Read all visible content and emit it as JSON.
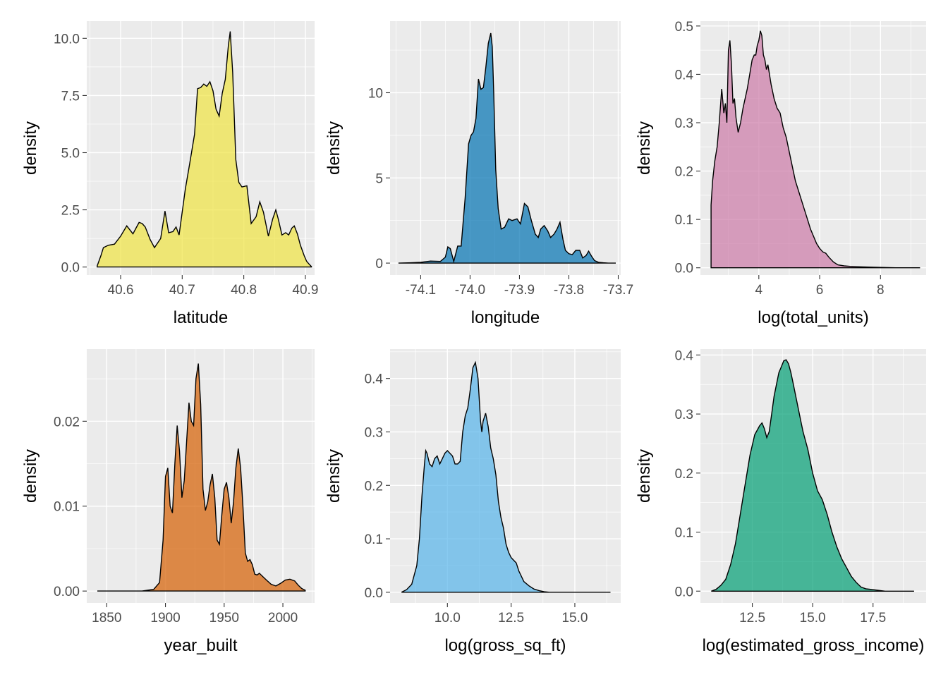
{
  "chart_data": [
    {
      "type": "area",
      "xlabel": "latitude",
      "ylabel": "density",
      "color": "#F0E442",
      "xlim": [
        40.545,
        40.915
      ],
      "ylim": [
        -0.35,
        10.75
      ],
      "xticks": [
        40.6,
        40.7,
        40.8,
        40.9
      ],
      "xtick_labels": [
        "40.6",
        "40.7",
        "40.8",
        "40.9"
      ],
      "yticks": [
        0,
        2.5,
        5,
        7.5,
        10
      ],
      "ytick_labels": [
        "0.0",
        "2.5",
        "5.0",
        "7.5",
        "10.0"
      ],
      "x": [
        40.562,
        40.568,
        40.572,
        40.58,
        40.59,
        40.6,
        40.61,
        40.62,
        40.625,
        40.63,
        40.635,
        40.64,
        40.648,
        40.655,
        40.665,
        40.672,
        40.678,
        40.685,
        40.69,
        40.695,
        40.705,
        40.712,
        40.72,
        40.725,
        40.73,
        40.735,
        40.74,
        40.745,
        40.75,
        40.755,
        40.76,
        40.765,
        40.77,
        40.775,
        40.778,
        40.782,
        40.787,
        40.792,
        40.797,
        40.805,
        40.812,
        40.82,
        40.826,
        40.832,
        40.84,
        40.847,
        40.852,
        40.856,
        40.862,
        40.868,
        40.873,
        40.878,
        40.882,
        40.887,
        40.892,
        40.898,
        40.902,
        40.907,
        40.91
      ],
      "y": [
        0.05,
        0.5,
        0.85,
        0.95,
        1.0,
        1.35,
        1.8,
        1.45,
        1.7,
        1.95,
        1.9,
        1.75,
        1.2,
        0.85,
        1.25,
        2.45,
        1.5,
        1.55,
        1.75,
        1.4,
        3.4,
        4.5,
        5.8,
        7.8,
        7.85,
        8.0,
        7.9,
        8.1,
        7.7,
        6.9,
        6.6,
        7.6,
        8.2,
        9.7,
        10.3,
        8.5,
        4.7,
        3.7,
        3.5,
        3.55,
        1.9,
        2.2,
        2.85,
        2.4,
        1.35,
        2.1,
        2.5,
        2.1,
        1.4,
        1.5,
        1.4,
        1.7,
        1.8,
        1.45,
        0.95,
        0.5,
        0.25,
        0.1,
        0.02
      ]
    },
    {
      "type": "area",
      "xlabel": "longitude",
      "ylabel": "density",
      "color": "#0072B2",
      "xlim": [
        -74.162,
        -73.695
      ],
      "ylim": [
        -0.7,
        14.2
      ],
      "xticks": [
        -74.1,
        -74.0,
        -73.9,
        -73.8,
        -73.7
      ],
      "xtick_labels": [
        "-74.1",
        "-74.0",
        "-73.9",
        "-73.8",
        "-73.7"
      ],
      "yticks": [
        0,
        5,
        10
      ],
      "ytick_labels": [
        "0",
        "5",
        "10"
      ],
      "x": [
        -74.145,
        -74.12,
        -74.1,
        -74.08,
        -74.06,
        -74.05,
        -74.045,
        -74.04,
        -74.033,
        -74.025,
        -74.018,
        -74.01,
        -74.003,
        -73.998,
        -73.993,
        -73.988,
        -73.983,
        -73.978,
        -73.973,
        -73.968,
        -73.963,
        -73.958,
        -73.955,
        -73.952,
        -73.948,
        -73.943,
        -73.937,
        -73.93,
        -73.922,
        -73.915,
        -73.905,
        -73.898,
        -73.89,
        -73.883,
        -73.876,
        -73.868,
        -73.862,
        -73.857,
        -73.85,
        -73.843,
        -73.837,
        -73.83,
        -73.824,
        -73.818,
        -73.812,
        -73.807,
        -73.8,
        -73.793,
        -73.786,
        -73.778,
        -73.772,
        -73.765,
        -73.76,
        -73.754,
        -73.748,
        -73.74,
        -73.73,
        -73.72,
        -73.705
      ],
      "y": [
        0.0,
        0.02,
        0.05,
        0.12,
        0.1,
        0.35,
        0.95,
        0.85,
        0.1,
        1.0,
        1.0,
        3.8,
        7.0,
        7.5,
        7.7,
        8.5,
        10.8,
        10.2,
        10.3,
        11.5,
        12.9,
        13.5,
        12.7,
        10.0,
        5.5,
        3.2,
        2.0,
        2.1,
        2.6,
        2.5,
        2.6,
        2.3,
        3.5,
        3.3,
        2.5,
        1.7,
        1.5,
        2.0,
        2.2,
        1.9,
        1.5,
        1.7,
        2.0,
        2.4,
        1.4,
        0.75,
        0.55,
        0.5,
        0.75,
        0.75,
        0.3,
        0.45,
        0.7,
        0.4,
        0.15,
        0.05,
        0.02,
        0.0,
        0.0
      ]
    },
    {
      "type": "area",
      "xlabel": "log(total_units)",
      "ylabel": "density",
      "color": "#CC79A7",
      "xlim": [
        2.08,
        9.5
      ],
      "ylim": [
        -0.015,
        0.51
      ],
      "xticks": [
        4,
        6,
        8
      ],
      "xtick_labels": [
        "4",
        "6",
        "8"
      ],
      "yticks": [
        0,
        0.1,
        0.2,
        0.3,
        0.4,
        0.5
      ],
      "ytick_labels": [
        "0.0",
        "0.1",
        "0.2",
        "0.3",
        "0.4",
        "0.5"
      ],
      "x": [
        2.43,
        2.48,
        2.55,
        2.63,
        2.7,
        2.78,
        2.85,
        2.9,
        2.95,
        3.0,
        3.05,
        3.1,
        3.15,
        3.2,
        3.25,
        3.32,
        3.4,
        3.48,
        3.55,
        3.62,
        3.7,
        3.78,
        3.85,
        3.9,
        3.95,
        4.0,
        4.05,
        4.1,
        4.15,
        4.2,
        4.25,
        4.3,
        4.4,
        4.5,
        4.6,
        4.7,
        4.8,
        4.9,
        5.0,
        5.1,
        5.2,
        5.3,
        5.4,
        5.5,
        5.6,
        5.7,
        5.8,
        5.9,
        6.0,
        6.1,
        6.2,
        6.3,
        6.45,
        6.6,
        6.8,
        7.0,
        7.3,
        7.8,
        8.5,
        9.3
      ],
      "y": [
        0.13,
        0.18,
        0.22,
        0.25,
        0.3,
        0.37,
        0.32,
        0.34,
        0.3,
        0.45,
        0.47,
        0.42,
        0.34,
        0.35,
        0.31,
        0.28,
        0.3,
        0.33,
        0.35,
        0.37,
        0.4,
        0.43,
        0.44,
        0.44,
        0.46,
        0.47,
        0.49,
        0.48,
        0.44,
        0.43,
        0.41,
        0.42,
        0.38,
        0.35,
        0.33,
        0.32,
        0.29,
        0.27,
        0.24,
        0.21,
        0.18,
        0.16,
        0.14,
        0.12,
        0.1,
        0.08,
        0.065,
        0.05,
        0.04,
        0.033,
        0.03,
        0.022,
        0.012,
        0.006,
        0.004,
        0.003,
        0.002,
        0.001,
        0.0,
        0.0
      ]
    },
    {
      "type": "area",
      "xlabel": "year_built",
      "ylabel": "density",
      "color": "#D55E00",
      "xlim": [
        1833,
        2027
      ],
      "ylim": [
        -0.0014,
        0.0285
      ],
      "xticks": [
        1850,
        1900,
        1950,
        2000
      ],
      "xtick_labels": [
        "1850",
        "1900",
        "1950",
        "2000"
      ],
      "yticks": [
        0,
        0.01,
        0.02
      ],
      "ytick_labels": [
        "0.00",
        "0.01",
        "0.02"
      ],
      "x": [
        1842,
        1860,
        1880,
        1890,
        1895,
        1898,
        1900,
        1902,
        1904,
        1906,
        1908,
        1910,
        1912,
        1914,
        1916,
        1918,
        1920,
        1922,
        1924,
        1926,
        1928,
        1930,
        1932,
        1934,
        1936,
        1938,
        1940,
        1942,
        1944,
        1946,
        1948,
        1950,
        1952,
        1954,
        1956,
        1958,
        1960,
        1962,
        1964,
        1966,
        1968,
        1970,
        1972,
        1974,
        1976,
        1978,
        1980,
        1983,
        1986,
        1990,
        1994,
        1998,
        2002,
        2006,
        2010,
        2013,
        2016,
        2019
      ],
      "y": [
        0.0,
        0.0,
        0.0,
        0.0002,
        0.001,
        0.006,
        0.0135,
        0.0145,
        0.01,
        0.0092,
        0.015,
        0.0195,
        0.0165,
        0.011,
        0.013,
        0.0175,
        0.0222,
        0.02,
        0.0195,
        0.025,
        0.0268,
        0.022,
        0.012,
        0.0095,
        0.0105,
        0.0125,
        0.0138,
        0.011,
        0.006,
        0.0055,
        0.009,
        0.012,
        0.0128,
        0.011,
        0.008,
        0.0105,
        0.0145,
        0.0168,
        0.0145,
        0.01,
        0.0045,
        0.0035,
        0.0037,
        0.0031,
        0.002,
        0.0019,
        0.0021,
        0.0017,
        0.0013,
        0.0008,
        0.0006,
        0.0009,
        0.0013,
        0.0014,
        0.0012,
        0.0007,
        0.0003,
        0.0001
      ]
    },
    {
      "type": "area",
      "xlabel": "log(gross_sq_ft)",
      "ylabel": "density",
      "color": "#56B4E9",
      "xlim": [
        7.75,
        16.8
      ],
      "ylim": [
        -0.02,
        0.455
      ],
      "xticks": [
        10,
        12.5,
        15
      ],
      "xtick_labels": [
        "10.0",
        "12.5",
        "15.0"
      ],
      "yticks": [
        0,
        0.1,
        0.2,
        0.3,
        0.4
      ],
      "ytick_labels": [
        "0.0",
        "0.1",
        "0.2",
        "0.3",
        "0.4"
      ],
      "x": [
        8.2,
        8.4,
        8.6,
        8.8,
        8.9,
        9.0,
        9.1,
        9.15,
        9.2,
        9.3,
        9.4,
        9.5,
        9.6,
        9.7,
        9.8,
        9.9,
        10.0,
        10.1,
        10.2,
        10.3,
        10.4,
        10.5,
        10.6,
        10.7,
        10.8,
        10.9,
        11.0,
        11.1,
        11.2,
        11.3,
        11.35,
        11.4,
        11.5,
        11.6,
        11.7,
        11.8,
        11.9,
        12.0,
        12.1,
        12.2,
        12.3,
        12.4,
        12.5,
        12.6,
        12.7,
        12.8,
        12.9,
        13.0,
        13.2,
        13.4,
        13.6,
        13.8,
        14.0,
        14.5,
        15.0,
        15.5,
        16.0,
        16.4
      ],
      "y": [
        0.0,
        0.005,
        0.015,
        0.05,
        0.1,
        0.18,
        0.24,
        0.265,
        0.26,
        0.24,
        0.235,
        0.25,
        0.255,
        0.24,
        0.25,
        0.26,
        0.265,
        0.26,
        0.255,
        0.24,
        0.24,
        0.245,
        0.3,
        0.33,
        0.345,
        0.38,
        0.42,
        0.43,
        0.4,
        0.32,
        0.3,
        0.32,
        0.335,
        0.31,
        0.27,
        0.25,
        0.22,
        0.17,
        0.14,
        0.12,
        0.09,
        0.075,
        0.065,
        0.06,
        0.055,
        0.04,
        0.03,
        0.02,
        0.012,
        0.006,
        0.003,
        0.001,
        0.0,
        0.0,
        0.0,
        0.0,
        0.0,
        0.0
      ]
    },
    {
      "type": "area",
      "xlabel": "log(estimated_gross_income)",
      "ylabel": "density",
      "color": "#009E73",
      "xlim": [
        10.35,
        19.7
      ],
      "ylim": [
        -0.02,
        0.41
      ],
      "xticks": [
        12.5,
        15,
        17.5
      ],
      "xtick_labels": [
        "12.5",
        "15.0",
        "17.5"
      ],
      "yticks": [
        0,
        0.1,
        0.2,
        0.3,
        0.4
      ],
      "ytick_labels": [
        "0.0",
        "0.1",
        "0.2",
        "0.3",
        "0.4"
      ],
      "x": [
        10.8,
        11.0,
        11.2,
        11.4,
        11.6,
        11.8,
        12.0,
        12.2,
        12.4,
        12.6,
        12.8,
        12.9,
        13.0,
        13.1,
        13.2,
        13.3,
        13.4,
        13.5,
        13.6,
        13.7,
        13.8,
        13.9,
        14.0,
        14.1,
        14.2,
        14.3,
        14.4,
        14.5,
        14.6,
        14.8,
        15.0,
        15.2,
        15.4,
        15.6,
        15.8,
        16.0,
        16.2,
        16.4,
        16.6,
        16.8,
        17.0,
        17.2,
        17.4,
        17.6,
        17.8,
        18.0,
        18.2,
        18.5,
        18.8,
        19.2
      ],
      "y": [
        0.0,
        0.003,
        0.01,
        0.02,
        0.045,
        0.08,
        0.13,
        0.18,
        0.23,
        0.265,
        0.28,
        0.285,
        0.275,
        0.26,
        0.27,
        0.3,
        0.33,
        0.35,
        0.37,
        0.38,
        0.39,
        0.392,
        0.385,
        0.37,
        0.35,
        0.33,
        0.31,
        0.29,
        0.27,
        0.24,
        0.2,
        0.17,
        0.155,
        0.13,
        0.1,
        0.075,
        0.055,
        0.04,
        0.025,
        0.015,
        0.007,
        0.004,
        0.003,
        0.002,
        0.001,
        0.0,
        0.0,
        0.0,
        0.0,
        0.0
      ]
    }
  ]
}
